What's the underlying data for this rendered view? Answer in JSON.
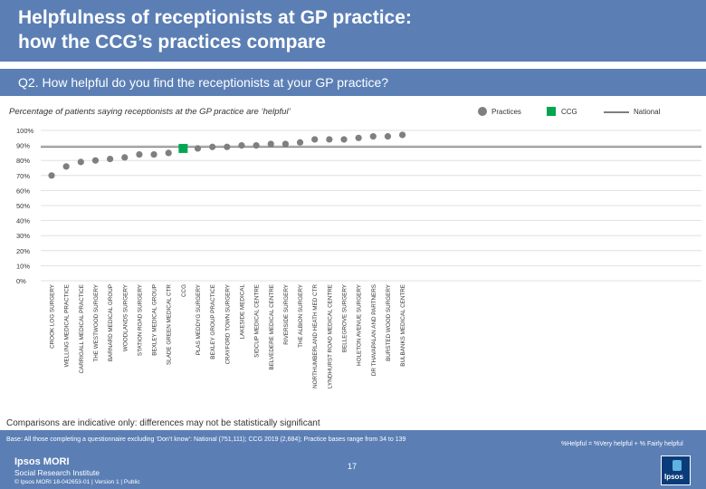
{
  "header": {
    "title_line1": "Helpfulness of receptionists at GP practice:",
    "title_line2": "how the CCG’s practices compare"
  },
  "question": "Q2. How helpful do you find the receptionists at your GP practice?",
  "subtitle": "Percentage of patients saying receptionists at the GP practice are ‘helpful’",
  "legend": {
    "practices": "Practices",
    "ccg": "CCG",
    "national": "National"
  },
  "colors": {
    "brand": "#5b7fb5",
    "practice": "#7f7f7f",
    "ccg": "#00a650",
    "grid": "#d9d9d9"
  },
  "chart_data": {
    "type": "scatter",
    "ylim": [
      0,
      100
    ],
    "yticks": [
      "0%",
      "10%",
      "20%",
      "30%",
      "40%",
      "50%",
      "60%",
      "70%",
      "80%",
      "90%",
      "100%"
    ],
    "grid": true,
    "legend_position": "top-right",
    "categories": [
      "CROOK LOG SURGERY",
      "WELLING MEDICAL PRACTICE",
      "CARRIGALL MEDICAL PRACTICE",
      "THE WESTWOOD SURGERY",
      "BARNARD MEDICAL GROUP",
      "WOODLANDS SURGERY",
      "STATION ROAD SURGERY",
      "BEXLEY MEDICAL GROUP",
      "SLADE GREEN MEDICAL CTR",
      "CCG",
      "PLAS MEDDYG SURGERY",
      "BEXLEY GROUP PRACTICE",
      "CRAYFORD TOWN SURGERY",
      "LAKESIDE MEDICAL",
      "SIDCUP MEDICAL CENTRE",
      "BELVEDERE MEDICAL CENTRE",
      "RIVERSIDE SURGERY",
      "THE ALBION SURGERY",
      "NORTHUMBERLAND HEATH MED CTR",
      "LYNDHURST ROAD MEDICAL CENTRE",
      "BELLEGROVE SURGERY",
      "HOLETON AVENUE SURGERY",
      "DR THAVAPALAN AND PARTNERS",
      "BURSTED WOOD SURGERY",
      "BULBANKS MEDICAL CENTRE"
    ],
    "values": [
      70,
      76,
      79,
      80,
      81,
      82,
      84,
      84,
      85,
      88,
      88,
      89,
      89,
      90,
      90,
      91,
      91,
      92,
      94,
      94,
      94,
      95,
      96,
      96,
      97
    ],
    "highlight_index": 9,
    "national": 89
  },
  "comparison_note": "Comparisons are indicative only: differences may not be statistically significant",
  "footer": {
    "base": "Base: All those completing a questionnaire excluding ‘Don’t know’: National (751,111); CCG 2019 (2,684); Practice bases range from 34 to 139",
    "formula": "%Helpful = %Very helpful + % Fairly helpful",
    "page": "17",
    "brand_name": "Ipsos MORI",
    "brand_sub": "Social Research Institute",
    "copyright": "© Ipsos MORI     18-042653-01 | Version 1 | Public",
    "logo_text": "Ipsos"
  }
}
